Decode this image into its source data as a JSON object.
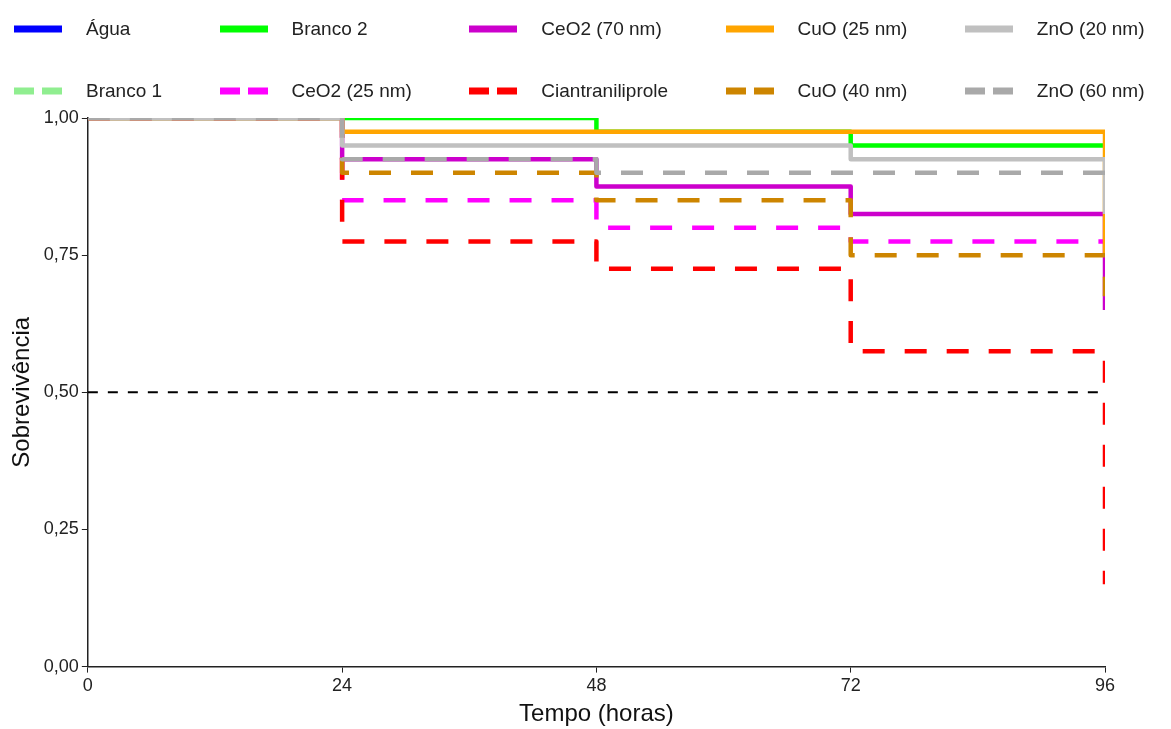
{
  "chart_data": {
    "type": "step",
    "xlabel": "Tempo (horas)",
    "ylabel": "Sobrevivência",
    "x": [
      0,
      24,
      48,
      72,
      96
    ],
    "xlim": [
      0,
      96
    ],
    "xticks": [
      0,
      24,
      48,
      72,
      96
    ],
    "ylim": [
      0,
      1
    ],
    "yticks": [
      {
        "value": 0,
        "label": "0,00"
      },
      {
        "value": 0.25,
        "label": "0,25"
      },
      {
        "value": 0.5,
        "label": "0,50"
      },
      {
        "value": 0.75,
        "label": "0,75"
      },
      {
        "value": 1,
        "label": "1,00"
      }
    ],
    "grid": false,
    "legend": "top",
    "marker": "none",
    "ref_lines": [
      {
        "axis": "y",
        "value": 0.5,
        "label": null,
        "color": "#000000",
        "line_style": "dashed"
      }
    ],
    "series": [
      {
        "name": "Água",
        "color": "#0000ff",
        "line_style": "solid",
        "values": [
          null,
          null,
          null,
          null,
          null
        ]
      },
      {
        "name": "Branco 1",
        "color": "#90ee90",
        "line_style": "dashed",
        "values": [
          null,
          null,
          null,
          null,
          null
        ]
      },
      {
        "name": "Branco 2",
        "color": "#00ff00",
        "line_style": "solid",
        "values": [
          1,
          1,
          0.975,
          0.95,
          0.95
        ]
      },
      {
        "name": "CeO2 (25 nm)",
        "color": "#ff00ff",
        "line_style": "dashed",
        "values": [
          1,
          0.85,
          0.8,
          0.775,
          0.775
        ]
      },
      {
        "name": "CeO2 (70 nm)",
        "color": "#cc00cc",
        "line_style": "solid",
        "values": [
          1,
          0.925,
          0.875,
          0.825,
          0.65
        ]
      },
      {
        "name": "Ciantraniliprole",
        "color": "#ff0000",
        "line_style": "dashed",
        "values": [
          1,
          0.775,
          0.725,
          0.575,
          0.15
        ]
      },
      {
        "name": "CuO (25 nm)",
        "color": "#ffa500",
        "line_style": "solid",
        "values": [
          1,
          0.975,
          0.975,
          0.975,
          0.75
        ]
      },
      {
        "name": "CuO (40 nm)",
        "color": "#cd8500",
        "line_style": "dashed",
        "values": [
          1,
          0.9,
          0.85,
          0.75,
          0.675
        ]
      },
      {
        "name": "ZnO (20 nm)",
        "color": "#c0c0c0",
        "line_style": "solid",
        "values": [
          1,
          0.95,
          0.95,
          0.925,
          0.825
        ]
      },
      {
        "name": "ZnO (60 nm)",
        "color": "#a9a9a9",
        "line_style": "dashed",
        "values": [
          1,
          0.925,
          0.9,
          0.9,
          0.9
        ]
      }
    ]
  }
}
